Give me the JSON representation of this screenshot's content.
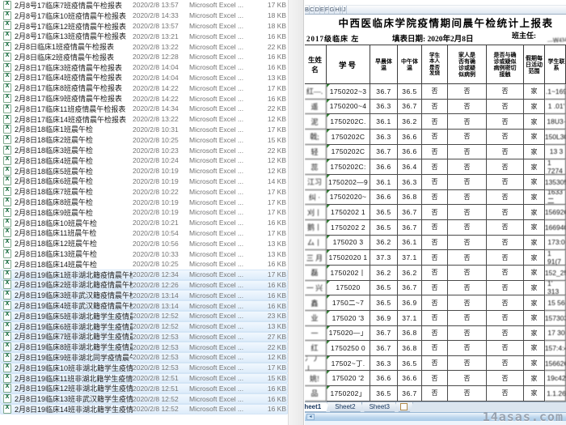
{
  "file_list": {
    "type_label": "Microsoft Excel ...",
    "rows": [
      {
        "name": "2月8号17临床7班疫情晨午检报表",
        "date": "2020/2/8 13:57",
        "size": "17 KB",
        "selected": false
      },
      {
        "name": "2月8号17临床10班疫情晨午检报表",
        "date": "2020/2/8 14:33",
        "size": "18 KB",
        "selected": false
      },
      {
        "name": "2月8号17临床12班疫情晨午检报表",
        "date": "2020/2/8 13:57",
        "size": "18 KB",
        "selected": false
      },
      {
        "name": "2月8号17临床13班疫情晨午检报表",
        "date": "2020/2/8 13:21",
        "size": "16 KB",
        "selected": false
      },
      {
        "name": "2月8日临床1班疫情晨午检报表",
        "date": "2020/2/8 13:22",
        "size": "22 KB",
        "selected": false
      },
      {
        "name": "2月8日临床2班疫情晨午检报表",
        "date": "2020/2/8 12:28",
        "size": "16 KB",
        "selected": false
      },
      {
        "name": "2月8日17临床3班疫情晨午检报表",
        "date": "2020/2/8 14:04",
        "size": "16 KB",
        "selected": false
      },
      {
        "name": "2月8日17临床4班疫情晨午检报表",
        "date": "2020/2/8 14:04",
        "size": "13 KB",
        "selected": false
      },
      {
        "name": "2月8日17临床8班疫情晨午检报表",
        "date": "2020/2/8 14:22",
        "size": "17 KB",
        "selected": false
      },
      {
        "name": "2月8日17临床9班疫情晨午检报表",
        "date": "2020/2/8 14:22",
        "size": "16 KB",
        "selected": false
      },
      {
        "name": "2月8日17临床11班疫情晨午检报表",
        "date": "2020/2/8 14:34",
        "size": "22 KB",
        "selected": false
      },
      {
        "name": "2月8日17临床14班疫情晨午检报表",
        "date": "2020/2/8 13:22",
        "size": "12 KB",
        "selected": false
      },
      {
        "name": "2月8日18临床1班晨午检",
        "date": "2020/2/8 10:31",
        "size": "17 KB",
        "selected": false
      },
      {
        "name": "2月8日18临床2班晨午检",
        "date": "2020/2/8 10:25",
        "size": "15 KB",
        "selected": false
      },
      {
        "name": "2月8日18临床3班晨午检",
        "date": "2020/2/8 10:23",
        "size": "22 KB",
        "selected": false
      },
      {
        "name": "2月8日18临床4班晨午检",
        "date": "2020/2/8 10:24",
        "size": "12 KB",
        "selected": false
      },
      {
        "name": "2月8日18临床5班晨午检",
        "date": "2020/2/8 10:19",
        "size": "12 KB",
        "selected": false
      },
      {
        "name": "2月8日18临床6班晨午检",
        "date": "2020/2/8 10:19",
        "size": "14 KB",
        "selected": false
      },
      {
        "name": "2月8日18临床7班晨午检",
        "date": "2020/2/8 10:22",
        "size": "17 KB",
        "selected": false
      },
      {
        "name": "2月8日18临床8班晨午检",
        "date": "2020/2/8 10:19",
        "size": "17 KB",
        "selected": false
      },
      {
        "name": "2月8日18临床9班晨午检",
        "date": "2020/2/8 10:19",
        "size": "17 KB",
        "selected": false
      },
      {
        "name": "2月8日18临床10班晨午检",
        "date": "2020/2/8 10:21",
        "size": "16 KB",
        "selected": false
      },
      {
        "name": "2月8日18临床11班晨午检",
        "date": "2020/2/8 10:54",
        "size": "17 KB",
        "selected": false
      },
      {
        "name": "2月8日18临床12班晨午检",
        "date": "2020/2/8 10:56",
        "size": "13 KB",
        "selected": false
      },
      {
        "name": "2月8日18临床13班晨午检",
        "date": "2020/2/8 10:33",
        "size": "13 KB",
        "selected": false
      },
      {
        "name": "2月8日18临床14班晨午检",
        "date": "2020/2/8 10:25",
        "size": "16 KB",
        "selected": false
      },
      {
        "name": "2月8日19临床1班非湖北籍疫情晨午检报...",
        "date": "2020/2/8 12:34",
        "size": "17 KB",
        "selected": true
      },
      {
        "name": "2月8日19临床2班非湖北籍疫情晨午检报...",
        "date": "2020/2/8 12:26",
        "size": "16 KB",
        "selected": true
      },
      {
        "name": "2月8日19临床3班非武汉籍疫情晨午检报...",
        "date": "2020/2/8 13:14",
        "size": "16 KB",
        "selected": true
      },
      {
        "name": "2月8日19临床4班非武汉籍疫情晨午检报...",
        "date": "2020/2/8 13:14",
        "size": "16 KB",
        "selected": true
      },
      {
        "name": "2月8日19临床5班非湖北籍学生疫情晨午...",
        "date": "2020/2/8 12:52",
        "size": "23 KB",
        "selected": true
      },
      {
        "name": "2月8日19临床6班非湖北籍学生疫情晨午...",
        "date": "2020/2/8 12:52",
        "size": "13 KB",
        "selected": true
      },
      {
        "name": "2月8日19临床7班非湖北籍学生疫情晨午...",
        "date": "2020/2/8 12:53",
        "size": "27 KB",
        "selected": true
      },
      {
        "name": "2月8日19临床8班非湖北籍学生疫情晨午...",
        "date": "2020/2/8 12:53",
        "size": "22 KB",
        "selected": true
      },
      {
        "name": "2月8日19临床9班非湖北同学疫情晨午检...",
        "date": "2020/2/8 12:53",
        "size": "12 KB",
        "selected": true
      },
      {
        "name": "2月8日19临床10班非湖北籍学生疫情晨...",
        "date": "2020/2/8 12:53",
        "size": "17 KB",
        "selected": true
      },
      {
        "name": "2月8日19临床11班非湖北籍学生疫情晨...",
        "date": "2020/2/8 12:51",
        "size": "15 KB",
        "selected": true
      },
      {
        "name": "2月8日19临床12班非湖北籍学生疫情晨...",
        "date": "2020/2/8 12:51",
        "size": "16 KB",
        "selected": true
      },
      {
        "name": "2月8日19临床13班非武汉籍学生疫情晨...",
        "date": "2020/2/8 12:52",
        "size": "16 KB",
        "selected": true
      },
      {
        "name": "2月8日19临床14班非湖北籍学生疫情晨...",
        "date": "2020/2/8 12:52",
        "size": "16 KB",
        "selected": true
      }
    ]
  },
  "spreadsheet": {
    "column_letters": [
      "B",
      "C",
      "D",
      "E",
      "F",
      "G",
      "H",
      "I",
      "J"
    ],
    "title": "中西医临床学院疫情期间晨午检统计上报表",
    "class_label": "2017级临床 左",
    "fill_date": "填表日期: 2020年2月8日",
    "teacher_label": "班主任:",
    "teacher_signature": "—Ｗ434-",
    "headers": {
      "name": "生姓名",
      "student_id": "学号",
      "morning_temp": "早晨体\n温",
      "noon_temp": "中午体\n温",
      "self_fever": "学生\n本人\n是否\n发烧",
      "family_case": "家人是\n否有确\n诊或疑\n似病例",
      "close_contact": "是否与确\n诊或疑似\n病例密切\n接触",
      "holiday_scope": "假期每\n日活动\n范围",
      "contact_info": "学生联系"
    },
    "no_label": "否",
    "home_label": "家",
    "rows": [
      {
        "name": "红—.",
        "id": "1750202~3",
        "t1": "36.7",
        "t2": "36.5",
        "phone": ".1~169"
      },
      {
        "name": "遥",
        "id": "1750200~4",
        "t1": "36.3",
        "t2": "36.7",
        "phone": "1 .01'"
      },
      {
        "name": "泥",
        "id": "1750202C.",
        "t1": "36.1",
        "t2": "36.2",
        "phone": "18U3·"
      },
      {
        "name": "戟;",
        "id": "1750202C",
        "t1": "36.3",
        "t2": "36.6",
        "phone": "150L30"
      },
      {
        "name": "轻",
        "id": "1750202C",
        "t1": "36.7",
        "t2": "36.6",
        "phone": "13  3"
      },
      {
        "name": "蕊",
        "id": "1750202C:",
        "t1": "36.6",
        "t2": "36.4",
        "phone": "1 7274"
      },
      {
        "name": "江习",
        "id": "1750202—9",
        "t1": "36.1",
        "t2": "36.3",
        "phone": "135305"
      },
      {
        "name": "纠 ·",
        "id": "17502020~",
        "t1": "36.6",
        "t2": "36.8",
        "phone": "1633二"
      },
      {
        "name": "刈丨",
        "id": "1750202 1",
        "t1": "36.5",
        "t2": "36.7",
        "phone": "156926"
      },
      {
        "name": "鹅丨",
        "id": "1750202 2",
        "t1": "36.5",
        "t2": "36.7",
        "phone": "166940"
      },
      {
        "name": "厶丨",
        "id": "175020  3",
        "t1": "36.2",
        "t2": "36.1",
        "phone": "173:0"
      },
      {
        "name": "三 月",
        "id": "17502020 1",
        "t1": "37.3",
        "t2": "37.1",
        "phone": "1 91(7"
      },
      {
        "name": "磊",
        "id": "1750202丨",
        "t1": "36.2",
        "t2": "36.2",
        "phone": "152_25"
      },
      {
        "name": "一 兴",
        "id": "175020",
        "t1": "36.5",
        "t2": "36.7",
        "phone": "1' 313"
      },
      {
        "name": "鑫",
        "id": "1750二~7",
        "t1": "36.5",
        "t2": "36.9",
        "phone": "15 56"
      },
      {
        "name": "业",
        "id": "175020 '3",
        "t1": "36.9",
        "t2": "37.1",
        "phone": "157303"
      },
      {
        "name": "一",
        "id": "175020—」",
        "t1": "36.7",
        "t2": "36.8",
        "phone": "17 30"
      },
      {
        "name": "红",
        "id": "1750250 0",
        "t1": "36.7",
        "t2": "36.8",
        "phone": "157:4:4"
      },
      {
        "name": "冫丿丨",
        "id": "17502~丁.",
        "t1": "36.3",
        "t2": "36.5",
        "phone": "156626"
      },
      {
        "name": "姚!",
        "id": "175020 '2",
        "t1": "36.6",
        "t2": "36.6",
        "phone": "19c42"
      },
      {
        "name": "品",
        "id": "1750202」",
        "t1": "36.5",
        "t2": "36.7",
        "phone": "1.1.26"
      }
    ],
    "tabs": [
      "Sheet1",
      "Sheet2",
      "Sheet3"
    ]
  },
  "watermark": "14asas.com",
  "colors": {
    "selection": "#dcebfa",
    "excel_green": "#1e7145",
    "scroll_strip_blue": "#b3cfe9",
    "grid_line": "#4a4a4a"
  }
}
